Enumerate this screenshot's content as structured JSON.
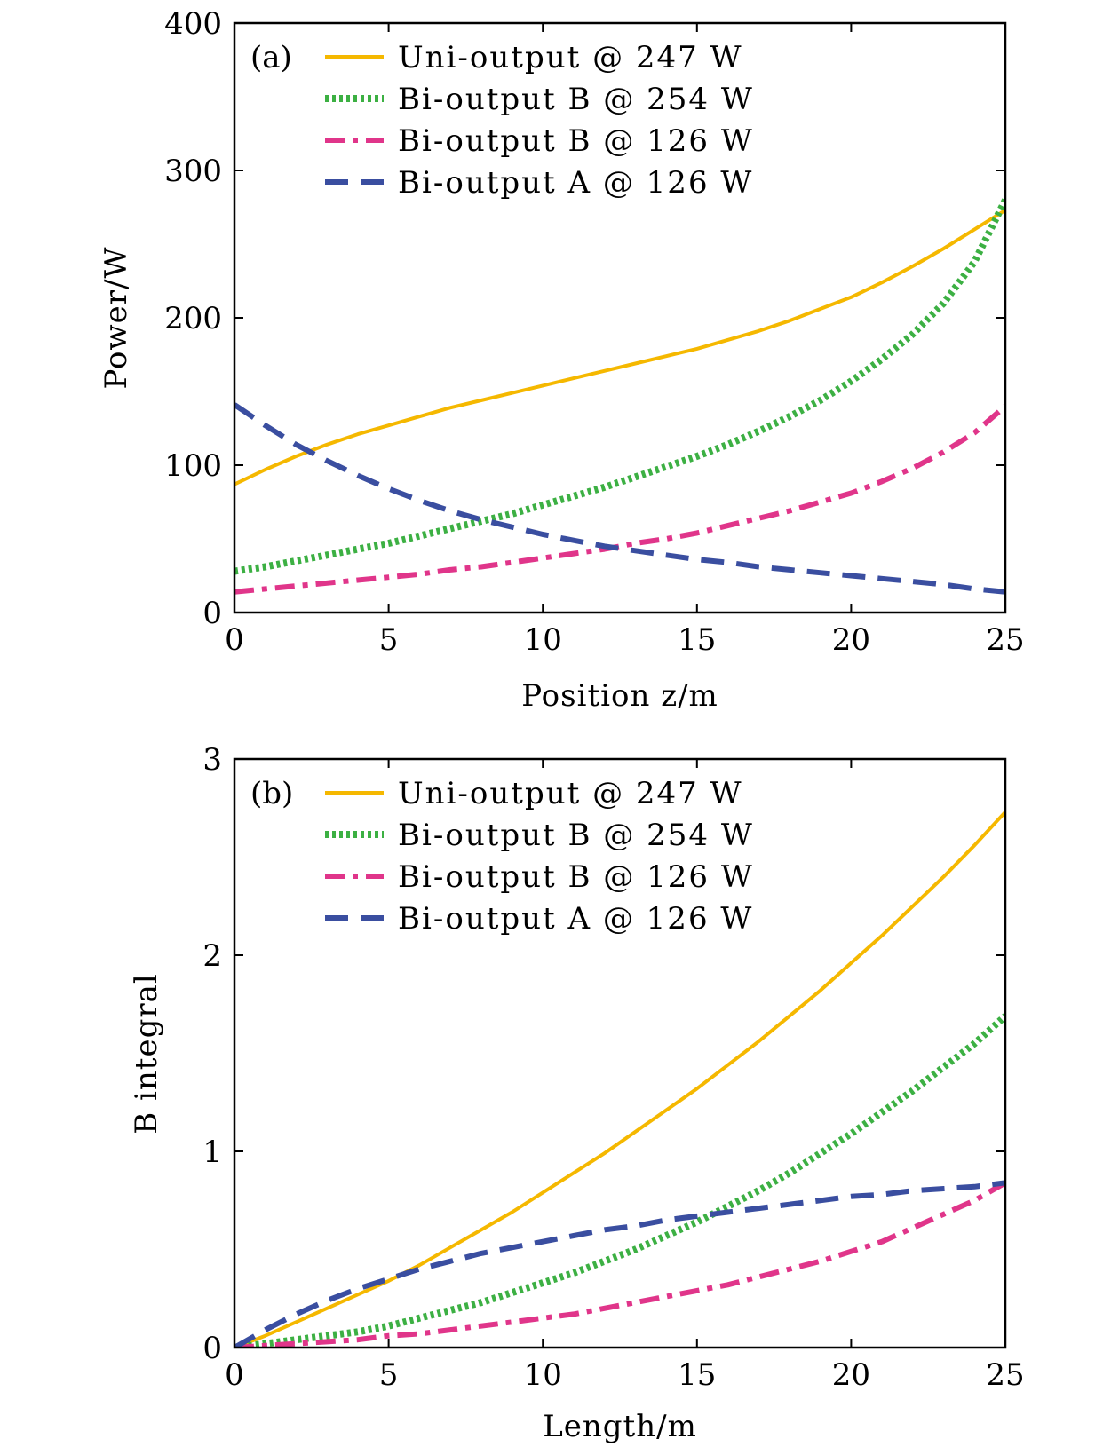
{
  "chart_data": [
    {
      "type": "line",
      "panel_label": "(a)",
      "xlabel": "Position z/m",
      "ylabel": "Power/W",
      "xlim": [
        0,
        25
      ],
      "ylim": [
        0,
        400
      ],
      "xticks": [
        0,
        5,
        10,
        15,
        20,
        25
      ],
      "yticks": [
        0,
        100,
        200,
        300,
        400
      ],
      "grid": false,
      "legend_position": "top-left",
      "series": [
        {
          "name": "Uni-output @ 247 W",
          "color": "#f5b800",
          "style": "solid",
          "x": [
            0,
            1,
            2,
            3,
            4,
            5,
            6,
            7,
            8,
            9,
            10,
            11,
            12,
            13,
            14,
            15,
            16,
            17,
            18,
            19,
            20,
            21,
            22,
            23,
            24,
            25
          ],
          "y": [
            87,
            97,
            106,
            114,
            121,
            127,
            133,
            139,
            144,
            149,
            154,
            159,
            164,
            169,
            174,
            179,
            185,
            191,
            198,
            206,
            214,
            224,
            235,
            247,
            260,
            273
          ]
        },
        {
          "name": "Bi-output B @ 254 W",
          "color": "#3cb043",
          "style": "dotted",
          "x": [
            0,
            1,
            2,
            3,
            4,
            5,
            6,
            7,
            8,
            9,
            10,
            11,
            12,
            13,
            14,
            15,
            16,
            17,
            18,
            19,
            20,
            21,
            22,
            23,
            24,
            25
          ],
          "y": [
            28,
            31,
            35,
            39,
            43,
            47,
            52,
            57,
            62,
            67,
            73,
            79,
            85,
            92,
            99,
            106,
            114,
            123,
            133,
            144,
            157,
            172,
            189,
            210,
            238,
            280
          ]
        },
        {
          "name": "Bi-output B @ 126 W",
          "color": "#e0358a",
          "style": "dashdot",
          "x": [
            0,
            1,
            2,
            3,
            4,
            5,
            6,
            7,
            8,
            9,
            10,
            11,
            12,
            13,
            14,
            15,
            16,
            17,
            18,
            19,
            20,
            21,
            22,
            23,
            24,
            25
          ],
          "y": [
            14,
            16,
            18,
            20,
            22,
            24,
            26,
            29,
            31,
            34,
            37,
            40,
            43,
            47,
            50,
            54,
            59,
            64,
            69,
            75,
            81,
            89,
            98,
            109,
            122,
            140
          ]
        },
        {
          "name": "Bi-output A @ 126 W",
          "color": "#3a4ea0",
          "style": "dashed",
          "x": [
            0,
            1,
            2,
            3,
            4,
            5,
            6,
            7,
            8,
            9,
            10,
            11,
            12,
            13,
            14,
            15,
            16,
            17,
            18,
            19,
            20,
            21,
            22,
            23,
            24,
            25
          ],
          "y": [
            141,
            127,
            114,
            103,
            93,
            84,
            76,
            69,
            63,
            58,
            53,
            49,
            45,
            42,
            39,
            36,
            34,
            31,
            29,
            27,
            25,
            23,
            21,
            19,
            16,
            14
          ]
        }
      ]
    },
    {
      "type": "line",
      "panel_label": "(b)",
      "xlabel": "Length/m",
      "ylabel": "B integral",
      "xlim": [
        0,
        25
      ],
      "ylim": [
        0,
        3
      ],
      "xticks": [
        0,
        5,
        10,
        15,
        20,
        25
      ],
      "yticks": [
        0,
        1,
        2,
        3
      ],
      "grid": false,
      "legend_position": "top-left",
      "series": [
        {
          "name": "Uni-output @ 247 W",
          "color": "#f5b800",
          "style": "solid",
          "x": [
            0,
            1,
            2,
            3,
            4,
            5,
            6,
            7,
            8,
            9,
            10,
            11,
            12,
            13,
            14,
            15,
            16,
            17,
            18,
            19,
            20,
            21,
            22,
            23,
            24,
            25
          ],
          "y": [
            0,
            0.06,
            0.13,
            0.2,
            0.27,
            0.34,
            0.42,
            0.51,
            0.6,
            0.69,
            0.79,
            0.89,
            0.99,
            1.1,
            1.21,
            1.32,
            1.44,
            1.56,
            1.69,
            1.82,
            1.96,
            2.1,
            2.25,
            2.4,
            2.56,
            2.73
          ]
        },
        {
          "name": "Bi-output B @ 254 W",
          "color": "#3cb043",
          "style": "dotted",
          "x": [
            0,
            1,
            2,
            3,
            4,
            5,
            6,
            7,
            8,
            9,
            10,
            11,
            12,
            13,
            14,
            15,
            16,
            17,
            18,
            19,
            20,
            21,
            22,
            23,
            24,
            25
          ],
          "y": [
            0,
            0.02,
            0.04,
            0.06,
            0.08,
            0.11,
            0.15,
            0.19,
            0.23,
            0.28,
            0.33,
            0.38,
            0.44,
            0.5,
            0.57,
            0.64,
            0.72,
            0.8,
            0.89,
            0.99,
            1.09,
            1.2,
            1.31,
            1.43,
            1.55,
            1.69
          ]
        },
        {
          "name": "Bi-output B @ 126 W",
          "color": "#e0358a",
          "style": "dashdot",
          "x": [
            0,
            1,
            2,
            3,
            4,
            5,
            6,
            7,
            8,
            9,
            10,
            11,
            12,
            13,
            14,
            15,
            16,
            17,
            18,
            19,
            20,
            21,
            22,
            23,
            24,
            25
          ],
          "y": [
            0,
            0.01,
            0.02,
            0.03,
            0.04,
            0.06,
            0.07,
            0.09,
            0.11,
            0.13,
            0.15,
            0.17,
            0.2,
            0.23,
            0.26,
            0.29,
            0.32,
            0.36,
            0.4,
            0.44,
            0.49,
            0.54,
            0.61,
            0.68,
            0.75,
            0.84
          ]
        },
        {
          "name": "Bi-output A @ 126 W",
          "color": "#3a4ea0",
          "style": "dashed",
          "x": [
            0,
            1,
            2,
            3,
            4,
            5,
            6,
            7,
            8,
            9,
            10,
            11,
            12,
            13,
            14,
            15,
            16,
            17,
            18,
            19,
            20,
            21,
            22,
            23,
            24,
            25
          ],
          "y": [
            0,
            0.09,
            0.17,
            0.24,
            0.3,
            0.35,
            0.4,
            0.44,
            0.48,
            0.51,
            0.54,
            0.57,
            0.6,
            0.62,
            0.65,
            0.67,
            0.69,
            0.71,
            0.73,
            0.75,
            0.77,
            0.78,
            0.8,
            0.81,
            0.82,
            0.84
          ]
        }
      ]
    }
  ]
}
